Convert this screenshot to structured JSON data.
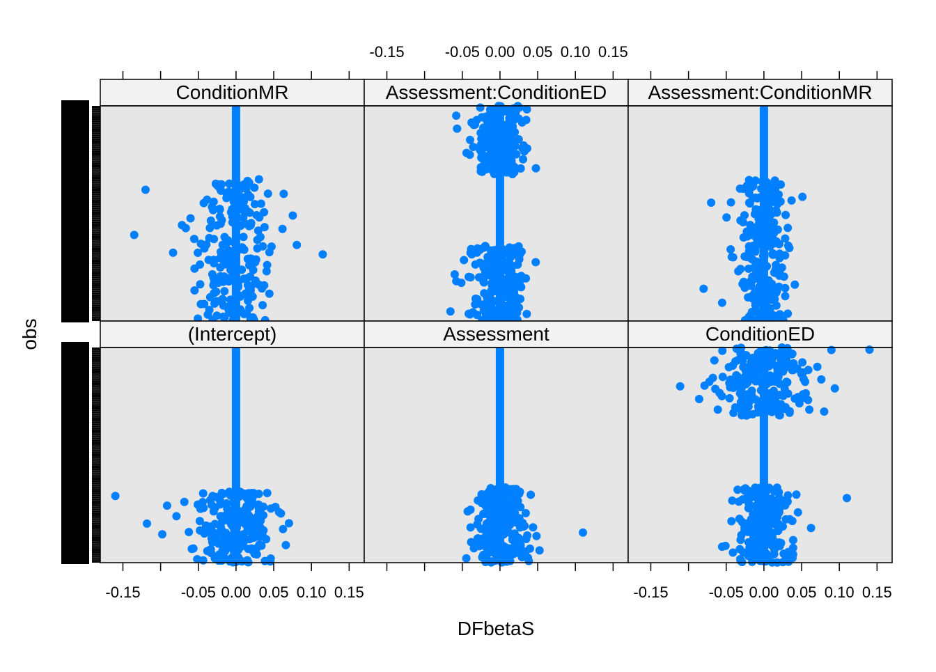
{
  "chart_data": {
    "type": "scatter",
    "layout": "lattice 3x2 strip plot",
    "xlabel": "DFbetaS",
    "ylabel": "obs",
    "xlim": [
      -0.18,
      0.17
    ],
    "x_ticks": [
      -0.15,
      -0.1,
      -0.05,
      0.0,
      0.05,
      0.1,
      0.15
    ],
    "x_tick_labels": [
      "-0.15",
      "",
      "-0.05",
      "0.00",
      "0.05",
      "0.10",
      "0.15"
    ],
    "colors": {
      "points": "#0080ff",
      "panel_bg": "#e6e6e6",
      "strip_bg": "#f2f2f2",
      "frame": "#000000"
    },
    "panels": [
      {
        "name": "ConditionMR",
        "row": 0,
        "col": 0,
        "line_x": 0.0,
        "clusters": [
          {
            "x": [
              -0.13,
              0.12
            ],
            "y": [
              0.0,
              0.66
            ]
          }
        ],
        "outliers": [
          {
            "x": -0.135,
            "y": 0.4
          },
          {
            "x": -0.12,
            "y": 0.61
          },
          {
            "x": 0.115,
            "y": 0.31
          }
        ]
      },
      {
        "name": "Assessment:ConditionED",
        "row": 0,
        "col": 1,
        "line_x": 0.0,
        "clusters": [
          {
            "x": [
              -0.09,
              0.07
            ],
            "y": [
              0.0,
              0.35
            ]
          },
          {
            "x": [
              -0.09,
              0.07
            ],
            "y": [
              0.68,
              1.0
            ]
          }
        ],
        "outliers": []
      },
      {
        "name": "Assessment:ConditionMR",
        "row": 0,
        "col": 2,
        "line_x": 0.0,
        "clusters": [
          {
            "x": [
              -0.08,
              0.07
            ],
            "y": [
              0.0,
              0.66
            ]
          }
        ],
        "outliers": [
          {
            "x": -0.08,
            "y": 0.15
          },
          {
            "x": -0.07,
            "y": 0.55
          }
        ]
      },
      {
        "name": "(Intercept)",
        "row": 1,
        "col": 0,
        "line_x": 0.0,
        "clusters": [
          {
            "x": [
              -0.13,
              0.13
            ],
            "y": [
              0.0,
              0.33
            ]
          }
        ],
        "outliers": [
          {
            "x": -0.16,
            "y": 0.31
          }
        ]
      },
      {
        "name": "Assessment",
        "row": 1,
        "col": 1,
        "line_x": 0.0,
        "clusters": [
          {
            "x": [
              -0.08,
              0.08
            ],
            "y": [
              0.0,
              0.35
            ]
          }
        ],
        "outliers": [
          {
            "x": 0.11,
            "y": 0.14
          }
        ]
      },
      {
        "name": "ConditionED",
        "row": 1,
        "col": 2,
        "line_x": 0.0,
        "clusters": [
          {
            "x": [
              -0.09,
              0.11
            ],
            "y": [
              0.0,
              0.35
            ]
          },
          {
            "x": [
              -0.15,
              0.14
            ],
            "y": [
              0.68,
              1.0
            ]
          }
        ],
        "outliers": [
          {
            "x": 0.14,
            "y": 0.99
          },
          {
            "x": 0.11,
            "y": 0.3
          }
        ]
      }
    ]
  }
}
